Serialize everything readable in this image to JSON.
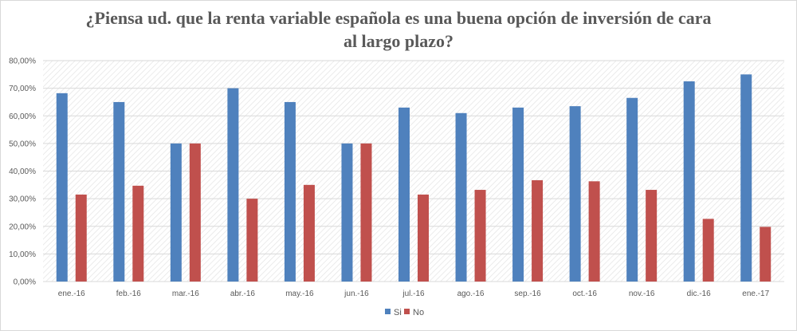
{
  "chart_data": {
    "type": "bar",
    "title": "¿Piensa ud. que la renta variable española es una buena opción de inversión de cara al largo plazo?",
    "categories": [
      "ene.-16",
      "feb.-16",
      "mar.-16",
      "abr.-16",
      "may.-16",
      "jun.-16",
      "jul.-16",
      "ago.-16",
      "sep.-16",
      "oct.-16",
      "nov.-16",
      "dic.-16",
      "ene.-17"
    ],
    "series": [
      {
        "name": "Si",
        "color": "#4f81bd",
        "values": [
          68.2,
          65.0,
          50.0,
          70.0,
          65.0,
          50.0,
          63.0,
          61.0,
          63.0,
          63.5,
          66.5,
          72.5,
          75.0
        ]
      },
      {
        "name": "No",
        "color": "#c0504d",
        "values": [
          31.5,
          34.7,
          50.0,
          30.0,
          35.0,
          50.0,
          31.5,
          33.2,
          36.7,
          36.3,
          33.2,
          22.7,
          19.8
        ]
      }
    ],
    "yticks": [
      "0,00%",
      "10,00%",
      "20,00%",
      "30,00%",
      "40,00%",
      "50,00%",
      "60,00%",
      "70,00%",
      "80,00%"
    ],
    "ylim": [
      0,
      80
    ],
    "xlabel": "",
    "ylabel": "",
    "grid": true,
    "legend_position": "bottom"
  }
}
